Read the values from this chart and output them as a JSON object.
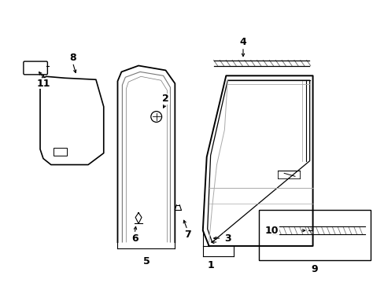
{
  "bg_color": "#ffffff",
  "line_color": "#000000",
  "gray_color": "#777777",
  "light_gray": "#aaaaaa"
}
